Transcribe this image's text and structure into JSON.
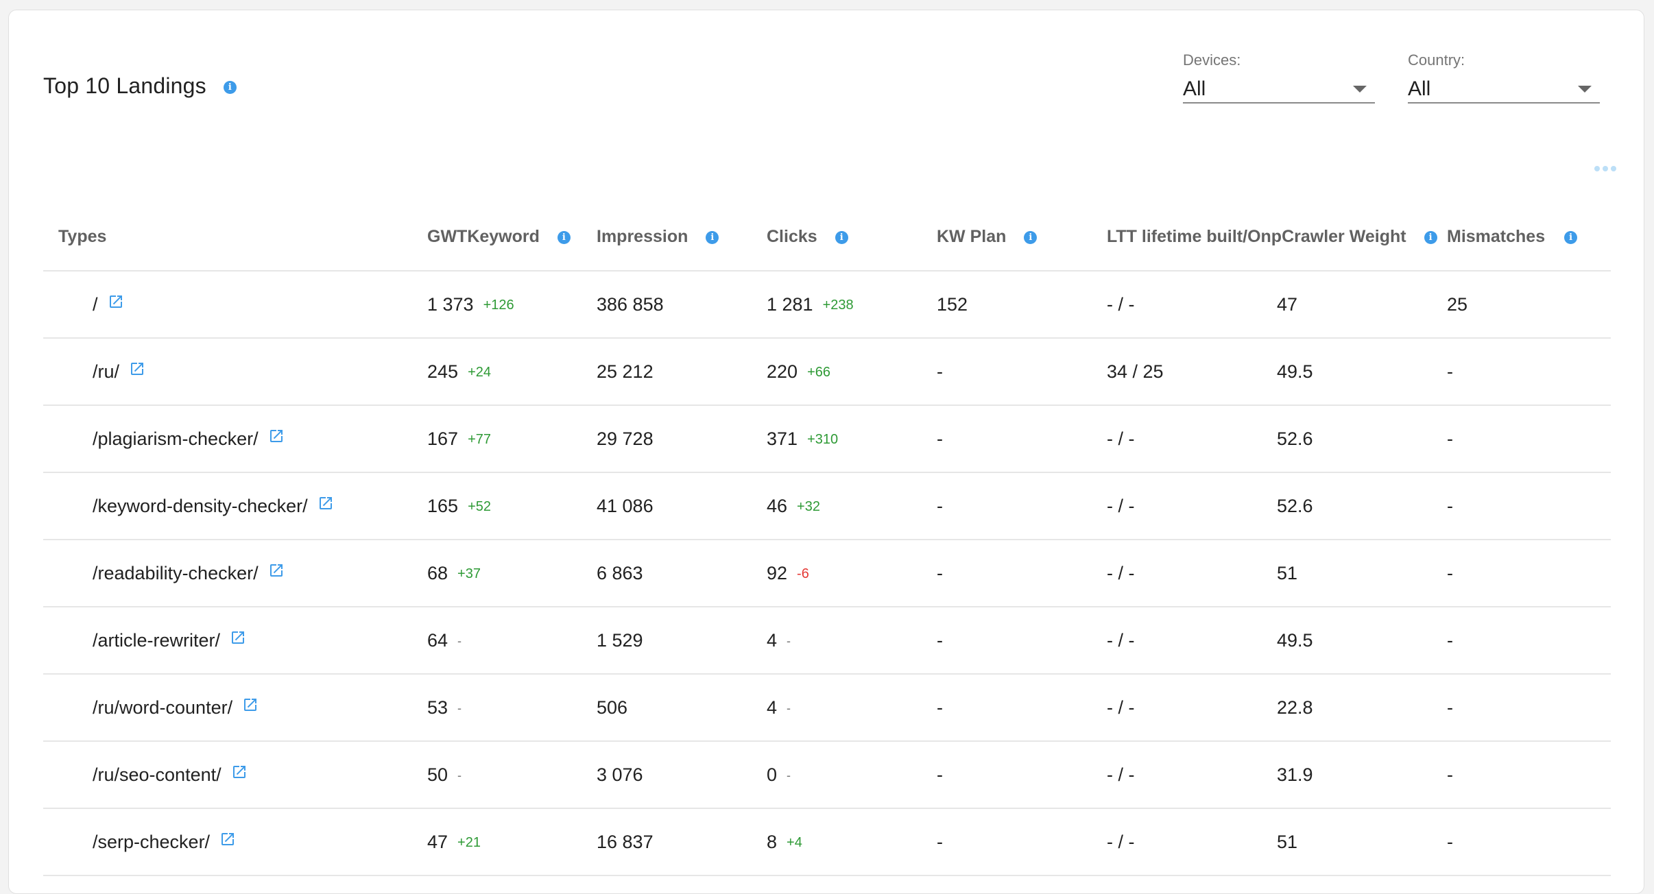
{
  "widget": {
    "title": "Top 10 Landings"
  },
  "filters": {
    "devices": {
      "label": "Devices:",
      "value": "All"
    },
    "country": {
      "label": "Country:",
      "value": "All"
    }
  },
  "table": {
    "headers": {
      "types": "Types",
      "gwt": "GWTKeyword",
      "impression": "Impression",
      "clicks": "Clicks",
      "kwplan": "KW Plan",
      "ltt_onp": "LTT lifetime built/OnpCrawler Weight",
      "mismatches": "Mismatches"
    },
    "rows": [
      {
        "type": "/",
        "gwt": "1 373",
        "gwt_delta": "+126",
        "impression": "386 858",
        "clicks": "1 281",
        "clicks_delta": "+238",
        "kwplan": "152",
        "ltt": "- / -",
        "onp": "47",
        "mismatches": "25"
      },
      {
        "type": "/ru/",
        "gwt": "245",
        "gwt_delta": "+24",
        "impression": "25 212",
        "clicks": "220",
        "clicks_delta": "+66",
        "kwplan": "-",
        "ltt": "34 / 25",
        "onp": "49.5",
        "mismatches": "-"
      },
      {
        "type": "/plagiarism-checker/",
        "gwt": "167",
        "gwt_delta": "+77",
        "impression": "29 728",
        "clicks": "371",
        "clicks_delta": "+310",
        "kwplan": "-",
        "ltt": "- / -",
        "onp": "52.6",
        "mismatches": "-"
      },
      {
        "type": "/keyword-density-checker/",
        "gwt": "165",
        "gwt_delta": "+52",
        "impression": "41 086",
        "clicks": "46",
        "clicks_delta": "+32",
        "kwplan": "-",
        "ltt": "- / -",
        "onp": "52.6",
        "mismatches": "-"
      },
      {
        "type": "/readability-checker/",
        "gwt": "68",
        "gwt_delta": "+37",
        "impression": "6 863",
        "clicks": "92",
        "clicks_delta": "-6",
        "kwplan": "-",
        "ltt": "- / -",
        "onp": "51",
        "mismatches": "-"
      },
      {
        "type": "/article-rewriter/",
        "gwt": "64",
        "gwt_delta": "-",
        "impression": "1 529",
        "clicks": "4",
        "clicks_delta": "-",
        "kwplan": "-",
        "ltt": "- / -",
        "onp": "49.5",
        "mismatches": "-"
      },
      {
        "type": "/ru/word-counter/",
        "gwt": "53",
        "gwt_delta": "-",
        "impression": "506",
        "clicks": "4",
        "clicks_delta": "-",
        "kwplan": "-",
        "ltt": "- / -",
        "onp": "22.8",
        "mismatches": "-"
      },
      {
        "type": "/ru/seo-content/",
        "gwt": "50",
        "gwt_delta": "-",
        "impression": "3 076",
        "clicks": "0",
        "clicks_delta": "-",
        "kwplan": "-",
        "ltt": "- / -",
        "onp": "31.9",
        "mismatches": "-"
      },
      {
        "type": "/serp-checker/",
        "gwt": "47",
        "gwt_delta": "+21",
        "impression": "16 837",
        "clicks": "8",
        "clicks_delta": "+4",
        "kwplan": "-",
        "ltt": "- / -",
        "onp": "51",
        "mismatches": "-"
      }
    ]
  },
  "icons": {
    "info": "info-icon",
    "external_link": "external-link-icon",
    "more": "more-horizontal-icon",
    "dropdown": "chevron-down-icon"
  },
  "colors": {
    "accent": "#3d9be9",
    "positive": "#2e9a35",
    "negative": "#e53935"
  }
}
